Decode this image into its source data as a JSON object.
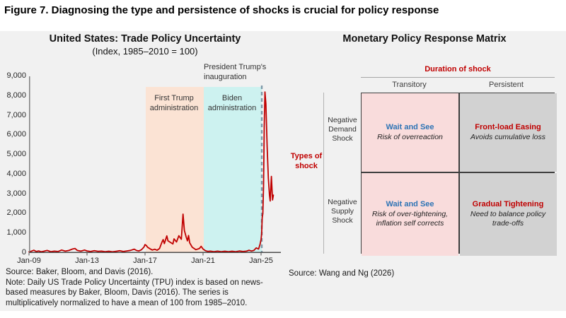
{
  "figure_title": "Figure 7. Diagnosing the type and persistence of shocks is crucial for policy response",
  "left_chart": {
    "title": "United States: Trade Policy Uncertainty",
    "subtitle": "(Index, 1985–2010 = 100)",
    "annotation_inauguration": "President Trump's inauguration",
    "band_label_trump1": "First Trump administration",
    "band_label_biden": "Biden administration",
    "source": "Source: Baker, Bloom, and Davis (2016).",
    "note": "Note: Daily US Trade Policy Uncertainty (TPU) index is based on news-based measures by Baker, Bloom, Davis (2016). The series is multiplicatively normalized to have a mean of 100 from 1985–2010."
  },
  "chart_data": {
    "type": "line",
    "title": "United States: Trade Policy Uncertainty",
    "subtitle": "(Index, 1985–2010 = 100)",
    "xlabel": "",
    "ylabel": "",
    "ylim": [
      0,
      9000
    ],
    "grid": false,
    "y_ticks": [
      "9,000",
      "8,000",
      "7,000",
      "6,000",
      "5,000",
      "4,000",
      "3,000",
      "2,000",
      "1,000",
      "0"
    ],
    "x_ticks": [
      "Jan-09",
      "Jan-13",
      "Jan-17",
      "Jan-21",
      "Jan-25"
    ],
    "x_tick_years": [
      2009,
      2013,
      2017,
      2021,
      2025
    ],
    "line_color": "#c00000",
    "series": [
      {
        "name": "US Trade Policy Uncertainty index (daily, news-based)",
        "color": "#c00000",
        "points": [
          [
            2009.0,
            55
          ],
          [
            2009.17,
            95
          ],
          [
            2009.33,
            140
          ],
          [
            2009.5,
            75
          ],
          [
            2009.67,
            105
          ],
          [
            2009.83,
            65
          ],
          [
            2010.0,
            85
          ],
          [
            2010.25,
            130
          ],
          [
            2010.5,
            70
          ],
          [
            2010.75,
            95
          ],
          [
            2011.0,
            75
          ],
          [
            2011.25,
            150
          ],
          [
            2011.5,
            95
          ],
          [
            2011.75,
            130
          ],
          [
            2012.0,
            200
          ],
          [
            2012.17,
            230
          ],
          [
            2012.33,
            130
          ],
          [
            2012.58,
            95
          ],
          [
            2012.83,
            150
          ],
          [
            2013.0,
            105
          ],
          [
            2013.25,
            75
          ],
          [
            2013.5,
            120
          ],
          [
            2013.75,
            85
          ],
          [
            2014.0,
            95
          ],
          [
            2014.25,
            65
          ],
          [
            2014.5,
            90
          ],
          [
            2014.75,
            60
          ],
          [
            2015.0,
            85
          ],
          [
            2015.25,
            115
          ],
          [
            2015.5,
            75
          ],
          [
            2015.75,
            105
          ],
          [
            2016.0,
            135
          ],
          [
            2016.25,
            195
          ],
          [
            2016.42,
            125
          ],
          [
            2016.58,
            105
          ],
          [
            2016.75,
            165
          ],
          [
            2016.92,
            300
          ],
          [
            2017.0,
            430
          ],
          [
            2017.08,
            390
          ],
          [
            2017.17,
            300
          ],
          [
            2017.33,
            220
          ],
          [
            2017.5,
            150
          ],
          [
            2017.67,
            190
          ],
          [
            2017.83,
            140
          ],
          [
            2018.0,
            230
          ],
          [
            2018.17,
            560
          ],
          [
            2018.25,
            680
          ],
          [
            2018.33,
            480
          ],
          [
            2018.5,
            870
          ],
          [
            2018.58,
            620
          ],
          [
            2018.75,
            540
          ],
          [
            2018.92,
            460
          ],
          [
            2019.0,
            720
          ],
          [
            2019.17,
            560
          ],
          [
            2019.33,
            880
          ],
          [
            2019.5,
            700
          ],
          [
            2019.62,
            1980
          ],
          [
            2019.71,
            1150
          ],
          [
            2019.83,
            830
          ],
          [
            2019.92,
            620
          ],
          [
            2020.0,
            890
          ],
          [
            2020.08,
            520
          ],
          [
            2020.25,
            300
          ],
          [
            2020.5,
            170
          ],
          [
            2020.75,
            230
          ],
          [
            2020.87,
            340
          ],
          [
            2021.0,
            200
          ],
          [
            2021.17,
            110
          ],
          [
            2021.33,
            80
          ],
          [
            2021.5,
            95
          ],
          [
            2021.75,
            70
          ],
          [
            2022.0,
            95
          ],
          [
            2022.25,
            70
          ],
          [
            2022.5,
            90
          ],
          [
            2022.75,
            65
          ],
          [
            2023.0,
            90
          ],
          [
            2023.25,
            70
          ],
          [
            2023.5,
            100
          ],
          [
            2023.75,
            75
          ],
          [
            2024.0,
            95
          ],
          [
            2024.17,
            140
          ],
          [
            2024.33,
            100
          ],
          [
            2024.5,
            130
          ],
          [
            2024.67,
            260
          ],
          [
            2024.83,
            200
          ],
          [
            2024.92,
            420
          ],
          [
            2025.0,
            680
          ],
          [
            2025.04,
            980
          ],
          [
            2025.08,
            1800
          ],
          [
            2025.12,
            2000
          ],
          [
            2025.17,
            3400
          ],
          [
            2025.22,
            6500
          ],
          [
            2025.27,
            8200
          ],
          [
            2025.33,
            7600
          ],
          [
            2025.42,
            5400
          ],
          [
            2025.5,
            3800
          ],
          [
            2025.58,
            2950
          ],
          [
            2025.63,
            2650
          ],
          [
            2025.71,
            3900
          ],
          [
            2025.79,
            2700
          ],
          [
            2025.85,
            2950
          ]
        ]
      }
    ],
    "shaded_regions": [
      {
        "label": "First Trump administration",
        "from": 2017.05,
        "to": 2021.05,
        "color": "#fbe3d4"
      },
      {
        "label": "Biden administration",
        "from": 2021.05,
        "to": 2025.05,
        "color": "#cdf2f0"
      }
    ],
    "vline": {
      "x": 2025.05,
      "label": "President Trump's inauguration",
      "style": "dashed",
      "color": "#7e99a9"
    }
  },
  "matrix": {
    "title": "Monetary Policy Response Matrix",
    "col_axis_label": "Duration of shock",
    "row_axis_label": "Types of shock",
    "col_headers": [
      "Transitory",
      "Persistent"
    ],
    "row_headers": [
      "Negative Demand Shock",
      "Negative Supply Shock"
    ],
    "cells": [
      [
        {
          "title": "Wait and See",
          "subtitle": "Risk of overreaction",
          "title_color": "#2e74b5",
          "bg": "#f9dcdc"
        },
        {
          "title": "Front-load Easing",
          "subtitle": "Avoids cumulative loss",
          "title_color": "#c00000",
          "bg": "#d2d2d2"
        }
      ],
      [
        {
          "title": "Wait and See",
          "subtitle": "Risk of over-tightening, inflation self corrects",
          "title_color": "#2e74b5",
          "bg": "#f9dcdc"
        },
        {
          "title": "Gradual Tightening",
          "subtitle": "Need to balance policy trade-offs",
          "title_color": "#c00000",
          "bg": "#d2d2d2"
        }
      ]
    ],
    "source": "Source: Wang and Ng (2026)"
  }
}
